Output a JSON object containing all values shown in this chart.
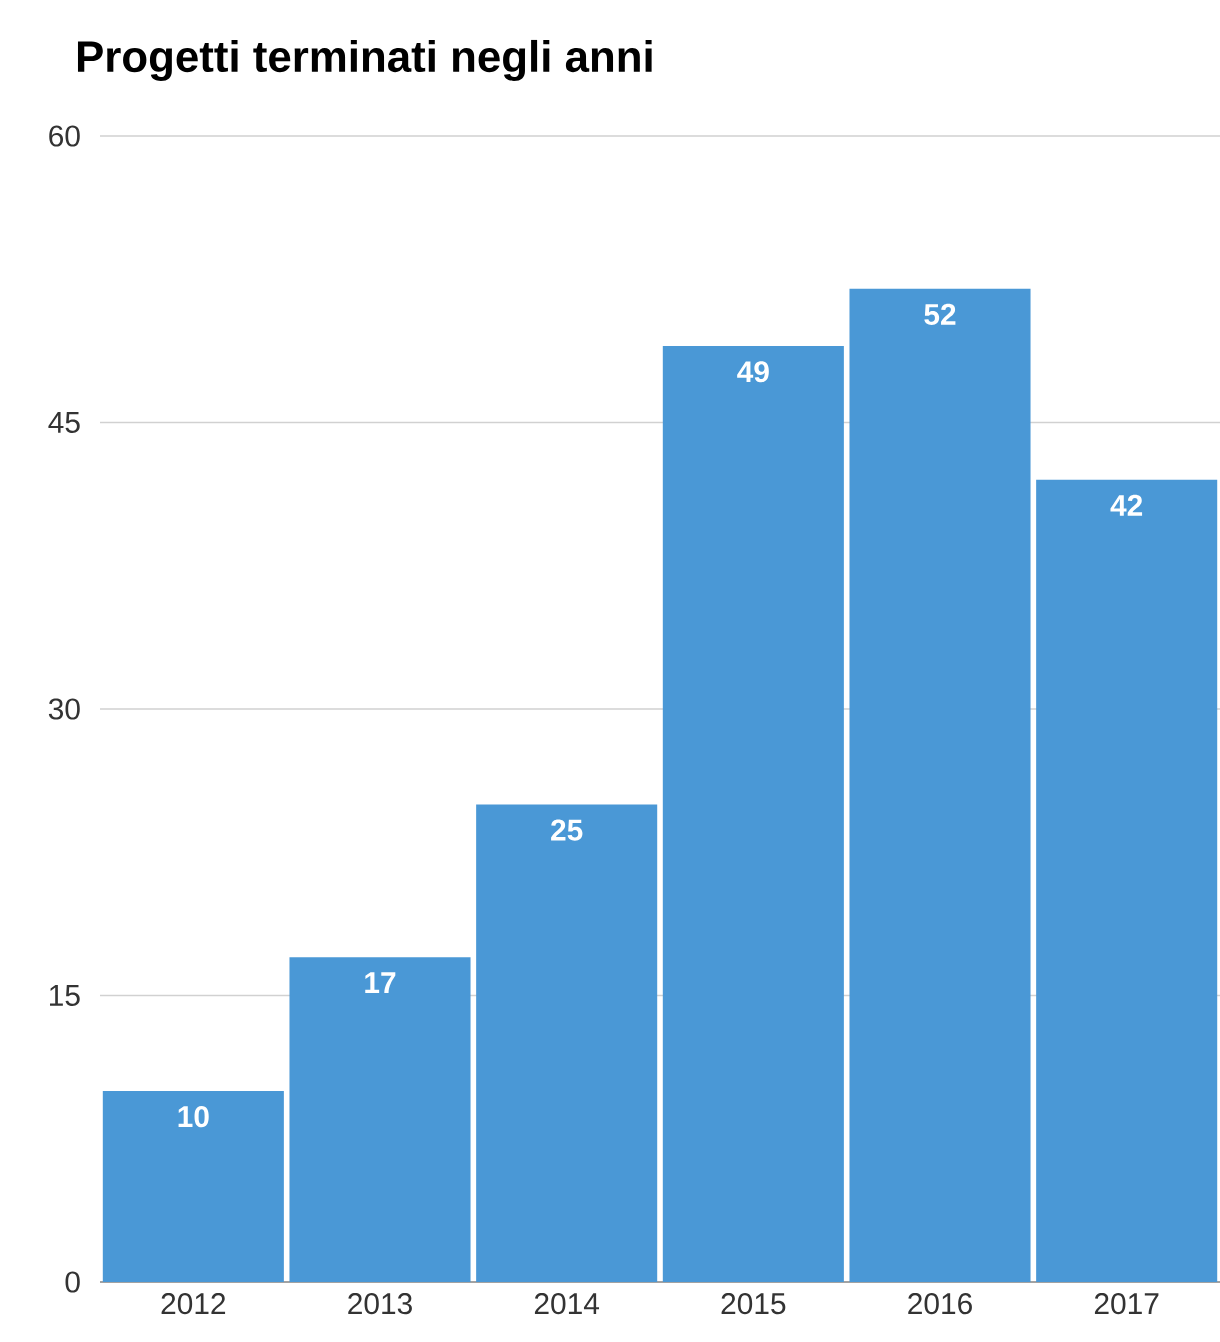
{
  "chart_data": {
    "type": "bar",
    "title": "Progetti terminati negli anni",
    "categories": [
      "2012",
      "2013",
      "2014",
      "2015",
      "2016",
      "2017"
    ],
    "values": [
      10,
      17,
      25,
      49,
      52,
      42
    ],
    "color": "#4a98d6",
    "ylim": [
      0,
      60
    ],
    "yticks": [
      0,
      15,
      30,
      45,
      60
    ],
    "grid": "y",
    "data_labels": true
  }
}
